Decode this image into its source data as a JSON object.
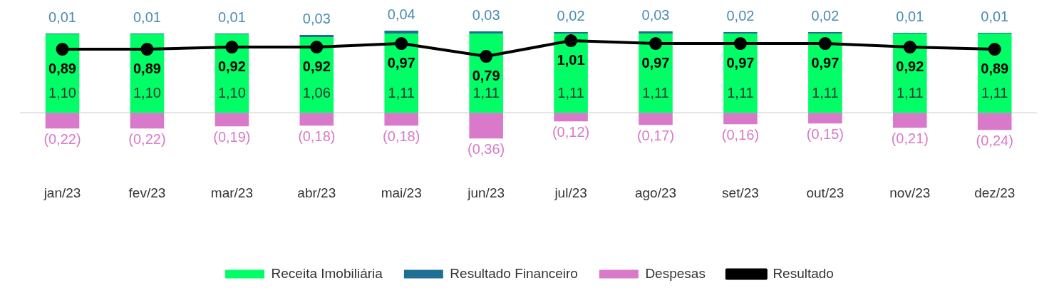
{
  "chart_data": {
    "type": "bar",
    "stacked": true,
    "categories": [
      "jan/23",
      "fev/23",
      "mar/23",
      "abr/23",
      "mai/23",
      "jun/23",
      "jul/23",
      "ago/23",
      "set/23",
      "out/23",
      "nov/23",
      "dez/23"
    ],
    "series": [
      {
        "name": "Receita Imobiliária",
        "color": "#00ff66",
        "values": [
          1.1,
          1.1,
          1.1,
          1.06,
          1.11,
          1.11,
          1.11,
          1.11,
          1.11,
          1.11,
          1.11,
          1.11
        ],
        "value_labels": [
          "1,10",
          "1,10",
          "1,10",
          "1,06",
          "1,11",
          "1,11",
          "1,11",
          "1,11",
          "1,11",
          "1,11",
          "1,11",
          "1,11"
        ]
      },
      {
        "name": "Resultado Financeiro",
        "color": "#1f6f94",
        "values": [
          0.01,
          0.01,
          0.01,
          0.03,
          0.04,
          0.03,
          0.02,
          0.03,
          0.02,
          0.02,
          0.01,
          0.01
        ],
        "value_labels": [
          "0,01",
          "0,01",
          "0,01",
          "0,03",
          "0,04",
          "0,03",
          "0,02",
          "0,03",
          "0,02",
          "0,02",
          "0,01",
          "0,01"
        ]
      },
      {
        "name": "Despesas",
        "color": "#d87ac9",
        "values": [
          -0.22,
          -0.22,
          -0.19,
          -0.18,
          -0.18,
          -0.36,
          -0.12,
          -0.17,
          -0.16,
          -0.15,
          -0.21,
          -0.24
        ],
        "value_labels": [
          "(0,22)",
          "(0,22)",
          "(0,19)",
          "(0,18)",
          "(0,18)",
          "(0,36)",
          "(0,12)",
          "(0,17)",
          "(0,16)",
          "(0,15)",
          "(0,21)",
          "(0,24)"
        ]
      },
      {
        "name": "Resultado",
        "type": "line",
        "color": "#000000",
        "values": [
          0.89,
          0.89,
          0.92,
          0.92,
          0.97,
          0.79,
          1.01,
          0.97,
          0.97,
          0.97,
          0.92,
          0.89
        ],
        "value_labels": [
          "0,89",
          "0,89",
          "0,92",
          "0,92",
          "0,97",
          "0,79",
          "1,01",
          "0,97",
          "0,97",
          "0,97",
          "0,92",
          "0,89"
        ]
      }
    ],
    "marker": "circle",
    "line_style": "solid",
    "legend": "bottom",
    "grid": false,
    "tick_labels": "x"
  }
}
